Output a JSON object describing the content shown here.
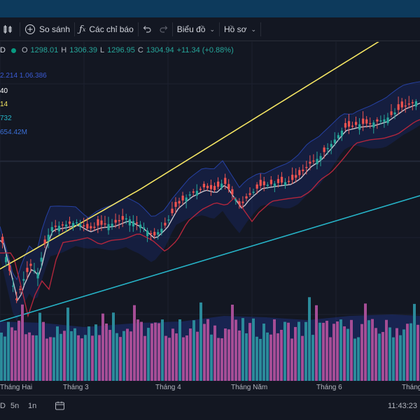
{
  "toolbar": {
    "compare": "So sánh",
    "indicators": "Các chỉ báo",
    "chart_type": "Biểu đồ",
    "profile": "Hồ sơ"
  },
  "ohlc": {
    "open_label": "O",
    "open": "1298.01",
    "high_label": "H",
    "high": "1306.39",
    "low_label": "L",
    "low": "1296.95",
    "close_label": "C",
    "close": "1304.94",
    "change": "+11.34 (+0.88%)"
  },
  "indicators": {
    "bb": "2.214  1.06.386",
    "ma1": "40",
    "ma2": "14",
    "ma3": "732",
    "vol": "654.42M"
  },
  "x_axis": [
    "Tháng Hai",
    "Tháng 3",
    "Tháng 4",
    "Tháng Năm",
    "Tháng 6",
    "Tháng"
  ],
  "footer": {
    "tf1": "5n",
    "tf2": "1n",
    "clock": "11:43:23"
  },
  "colors": {
    "up": "#26a69a",
    "down": "#ef5350",
    "ma_fast": "#c8c8d0",
    "ma_mid": "#b2263c",
    "ma_slow": "#f5e663",
    "ma_long": "#26b5c9",
    "vol_up": "#2b8a9a",
    "vol_down": "#a54d95"
  }
}
